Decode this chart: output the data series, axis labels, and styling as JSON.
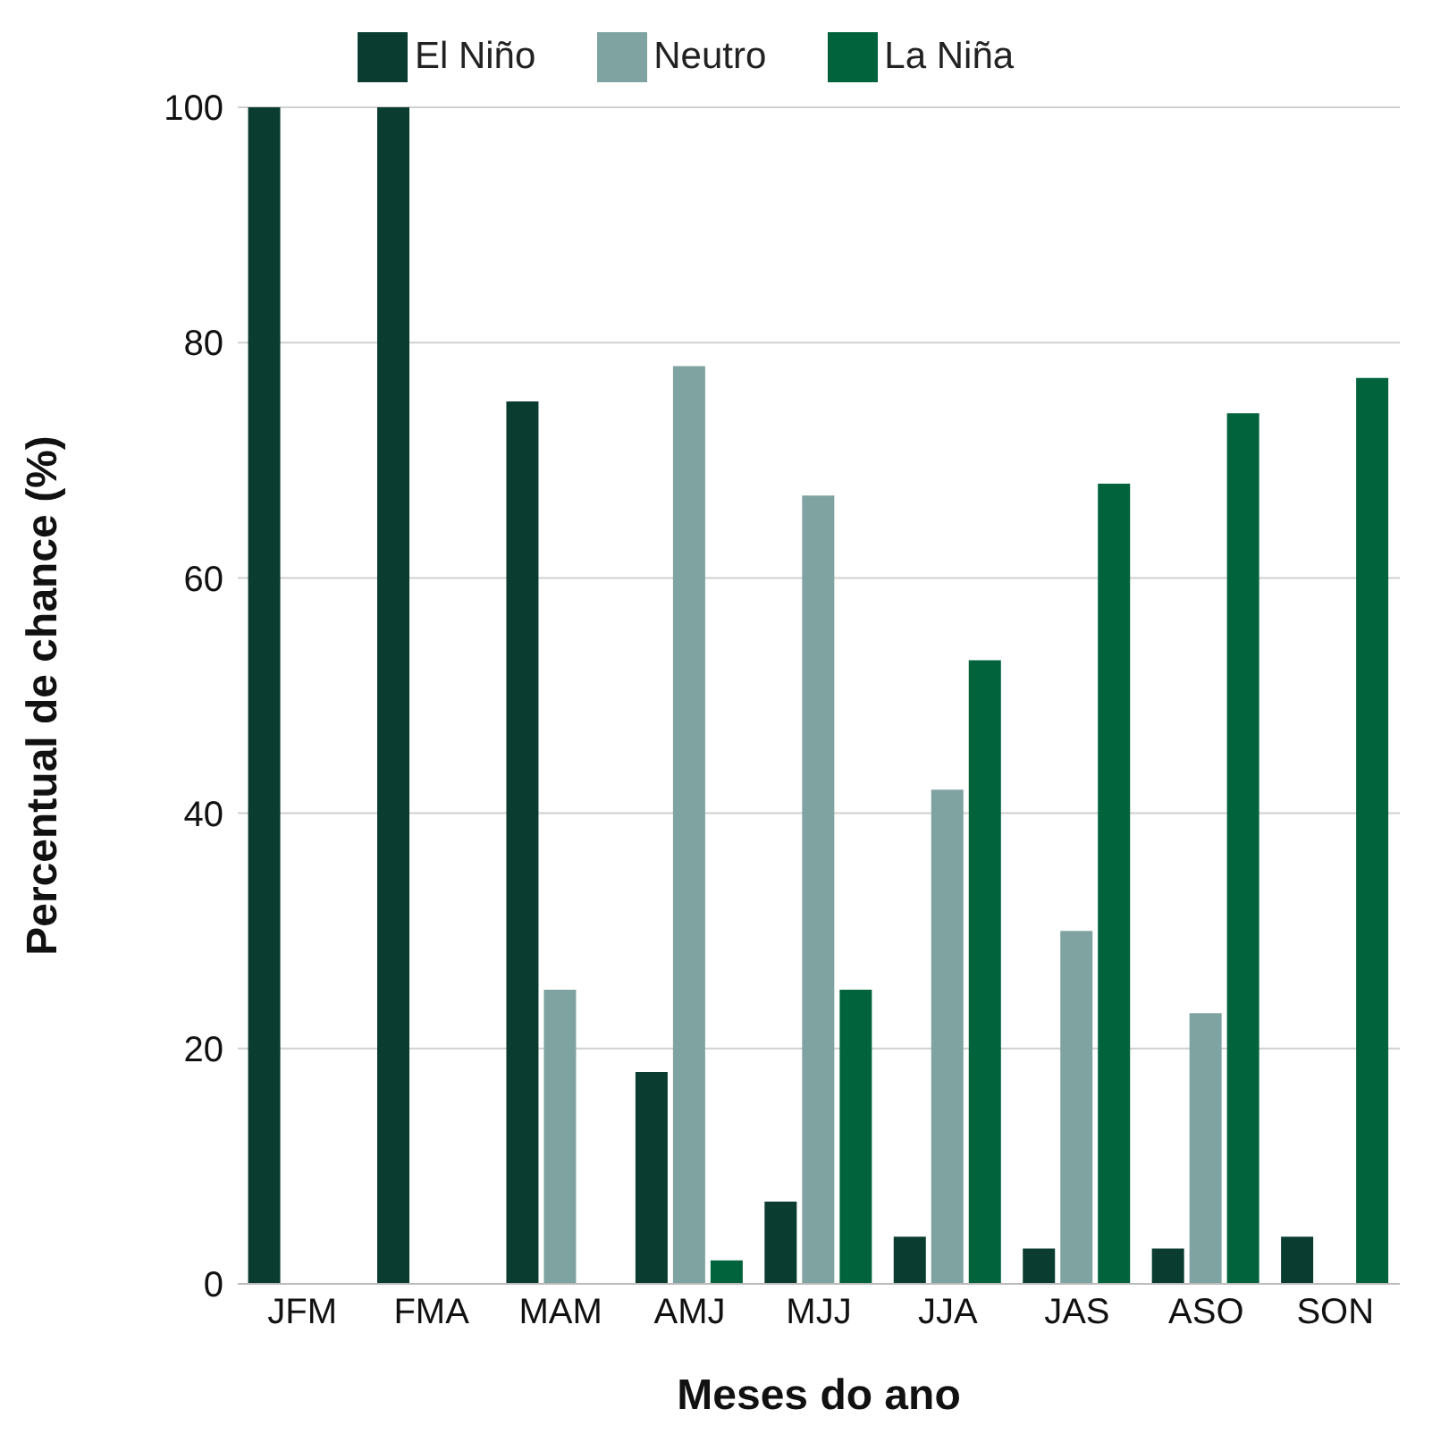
{
  "chart_data": {
    "type": "bar",
    "xlabel": "Meses do ano",
    "ylabel": "Percentual de chance (%)",
    "categories": [
      "JFM",
      "FMA",
      "MAM",
      "AMJ",
      "MJJ",
      "JJA",
      "JAS",
      "ASO",
      "SON"
    ],
    "series": [
      {
        "name": "El Niño",
        "color": "#0a3d2f",
        "values": [
          100,
          100,
          75,
          18,
          7,
          4,
          3,
          3,
          4
        ]
      },
      {
        "name": "Neutro",
        "color": "#7fa3a0",
        "values": [
          0,
          0,
          25,
          78,
          67,
          42,
          30,
          23,
          0
        ]
      },
      {
        "name": "La Niña",
        "color": "#00633b",
        "values": [
          0,
          0,
          0,
          2,
          25,
          53,
          68,
          74,
          77
        ]
      }
    ],
    "ylim": [
      0,
      100
    ],
    "yticks": [
      0,
      20,
      40,
      60,
      80,
      100
    ],
    "grid": "y",
    "legend": "top"
  }
}
